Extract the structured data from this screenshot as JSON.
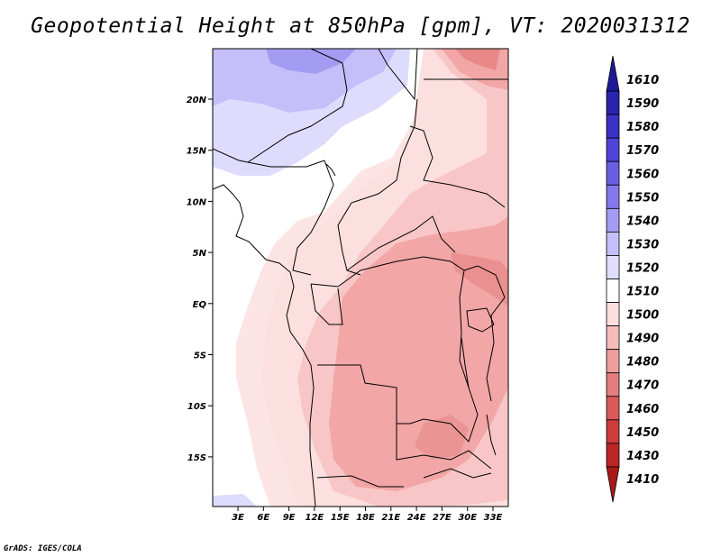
{
  "title": "Geopotential Height at 850hPa [gpm], VT: 2020031312",
  "credit": "GrADS: IGES/COLA",
  "map": {
    "lat_labels": [
      "20N",
      "15N",
      "10N",
      "5N",
      "EQ",
      "5S",
      "10S",
      "15S"
    ],
    "lon_labels": [
      "3E",
      "6E",
      "9E",
      "12E",
      "15E",
      "18E",
      "21E",
      "24E",
      "27E",
      "30E",
      "33E"
    ]
  },
  "colorbar": {
    "levels": [
      "1610",
      "1590",
      "1580",
      "1570",
      "1560",
      "1550",
      "1540",
      "1530",
      "1520",
      "1510",
      "1500",
      "1490",
      "1480",
      "1470",
      "1460",
      "1450",
      "1430",
      "1410"
    ],
    "colors": [
      "#1e1a96",
      "#2a23ae",
      "#3a31c6",
      "#4e44d8",
      "#6a5fe2",
      "#8379ea",
      "#a49cf2",
      "#c4bff8",
      "#e0defc",
      "#ffffff",
      "#fcdede",
      "#f6bcbc",
      "#ee9e9e",
      "#e47e7e",
      "#d85a5a",
      "#cc3c3c",
      "#bc2626",
      "#a81a1a"
    ]
  }
}
